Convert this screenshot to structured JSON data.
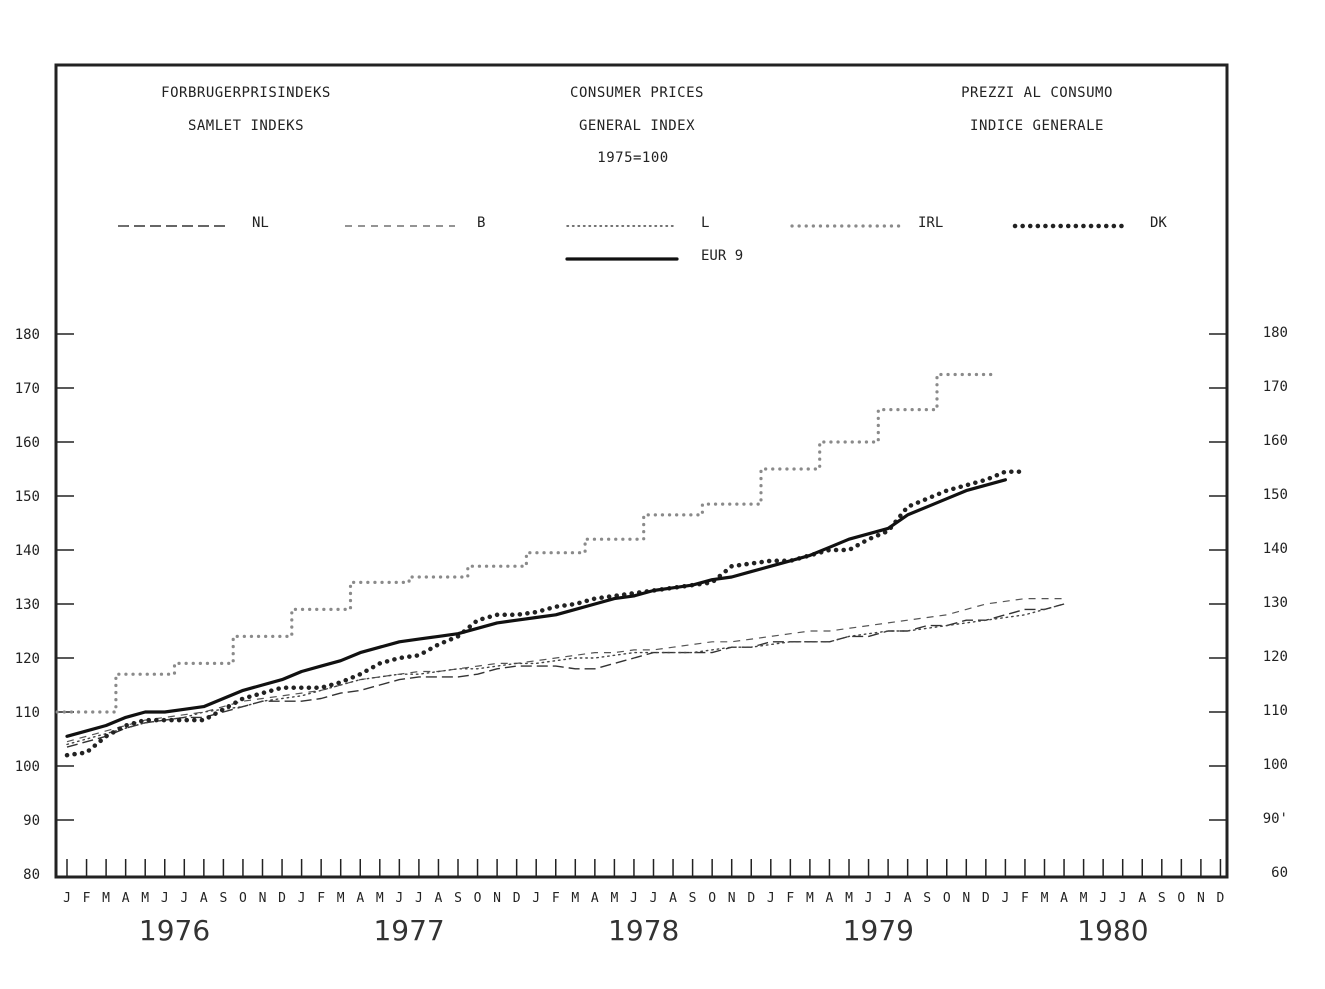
{
  "header": {
    "left": [
      "FORBRUGERPRISINDEKS",
      "SAMLET INDEKS"
    ],
    "center": [
      "CONSUMER PRICES",
      "GENERAL INDEX",
      "1975=100"
    ],
    "right": [
      "PREZZI AL CONSUMO",
      "INDICE GENERALE"
    ]
  },
  "chart_data": {
    "type": "line",
    "title": "",
    "xlabel": "",
    "ylabel": "",
    "ylim": [
      80,
      180
    ],
    "y_ticks": [
      "180",
      "170",
      "160",
      "150",
      "140",
      "130",
      "120",
      "110",
      "100",
      "90",
      "80"
    ],
    "y_ticks_right": [
      "180",
      "170",
      "160",
      "150",
      "140",
      "130",
      "120",
      "110",
      "100",
      "90'",
      "60"
    ],
    "months": [
      "J",
      "F",
      "M",
      "A",
      "M",
      "J",
      "J",
      "A",
      "S",
      "O",
      "N",
      "D"
    ],
    "years": [
      "1976",
      "1977",
      "1978",
      "1979",
      "1980"
    ],
    "x_start": "1976-01",
    "x_end": "1980-12",
    "grid": false,
    "legend_position": "top",
    "series": [
      {
        "name": "NL",
        "style": "long-dash",
        "color": "#333333",
        "values": [
          103.5,
          104.5,
          105.5,
          107,
          108,
          108.5,
          109,
          109,
          110,
          111,
          112,
          112,
          112,
          112.5,
          113.5,
          114,
          115,
          116,
          116.5,
          116.5,
          116.5,
          117,
          118,
          118.5,
          118.5,
          118.5,
          118,
          118,
          119,
          120,
          121,
          121,
          121,
          121,
          122,
          122,
          123,
          123,
          123,
          123,
          124,
          124,
          125,
          125,
          126,
          126,
          127,
          127,
          128,
          129,
          129,
          130
        ]
      },
      {
        "name": "B",
        "style": "dash",
        "color": "#555555",
        "values": [
          104.5,
          105.5,
          106.5,
          107.5,
          108.5,
          109,
          109.5,
          110,
          111,
          112,
          112.5,
          113,
          113.5,
          114,
          115,
          116,
          116.5,
          117,
          117.5,
          117.5,
          118,
          118.5,
          119,
          119,
          119.5,
          120,
          120.5,
          121,
          121,
          121.5,
          121.5,
          122,
          122.5,
          123,
          123,
          123.5,
          124,
          124.5,
          125,
          125,
          125.5,
          126,
          126.5,
          127,
          127.5,
          128,
          129,
          130,
          130.5,
          131,
          131,
          131
        ]
      },
      {
        "name": "L",
        "style": "fine-dot",
        "color": "#444444",
        "values": [
          104,
          105,
          106,
          107,
          108,
          108.5,
          109,
          110,
          110.5,
          111,
          112,
          112.5,
          113,
          114,
          115,
          116,
          116.5,
          117,
          117,
          117.5,
          118,
          118,
          118.5,
          119,
          119,
          119.5,
          120,
          120,
          120.5,
          121,
          121,
          121,
          121,
          121.5,
          122,
          122,
          122.5,
          123,
          123,
          123,
          124,
          124.5,
          125,
          125,
          125.5,
          126,
          126.5,
          127,
          127.5,
          128,
          129,
          130
        ]
      },
      {
        "name": "IRL",
        "style": "dot-step",
        "color": "#8a8a8a",
        "values": [
          110,
          110,
          110,
          117,
          117,
          117,
          119,
          119,
          119,
          124,
          124,
          124,
          129,
          129,
          129,
          134,
          134,
          134,
          135,
          135,
          135,
          137,
          137,
          137,
          139.5,
          139.5,
          139.5,
          142,
          142,
          142,
          146.5,
          146.5,
          146.5,
          148.5,
          148.5,
          148.5,
          155,
          155,
          155,
          160,
          160,
          160,
          166,
          166,
          166,
          172.5,
          172.5,
          172.5
        ]
      },
      {
        "name": "DK",
        "style": "heavy-dot",
        "color": "#222222",
        "values": [
          102,
          102.5,
          105.5,
          107.5,
          108.5,
          108.5,
          108.5,
          108.5,
          110.5,
          112.5,
          113.5,
          114.5,
          114.5,
          114.5,
          115.5,
          117,
          119,
          120,
          120.5,
          122.5,
          124,
          127,
          128,
          128,
          128.5,
          129.5,
          130,
          131,
          131.5,
          132,
          132.5,
          133,
          133.5,
          134,
          137,
          137.5,
          138,
          138,
          139,
          140,
          140,
          142,
          143.5,
          148,
          149.5,
          151,
          152,
          153,
          154.5,
          154.5
        ]
      },
      {
        "name": "EUR 9",
        "style": "solid",
        "color": "#111111",
        "values": [
          105.5,
          106.5,
          107.5,
          109,
          110,
          110,
          110.5,
          111,
          112.5,
          114,
          115,
          116,
          117.5,
          118.5,
          119.5,
          121,
          122,
          123,
          123.5,
          124,
          124.5,
          125.5,
          126.5,
          127,
          127.5,
          128,
          129,
          130,
          131,
          131.5,
          132.5,
          133,
          133.5,
          134.5,
          135,
          136,
          137,
          138,
          139,
          140.5,
          142,
          143,
          144,
          146.5,
          148,
          149.5,
          151,
          152,
          153
        ]
      }
    ]
  }
}
